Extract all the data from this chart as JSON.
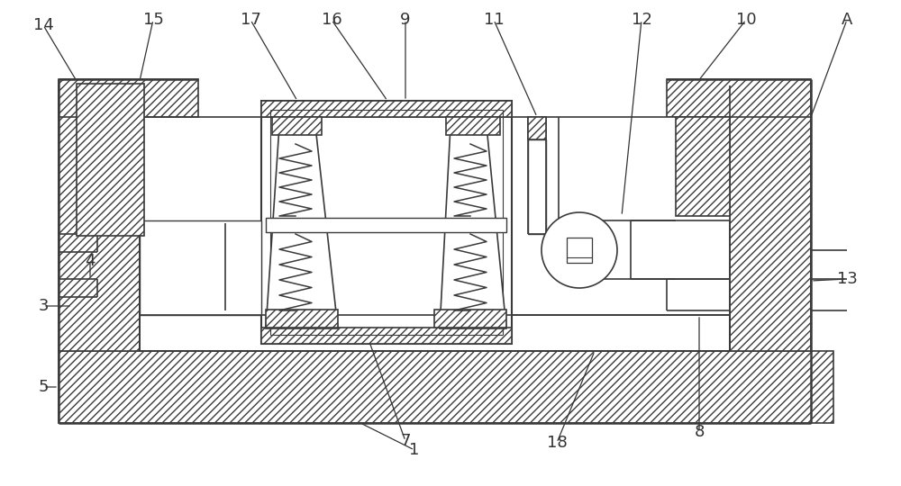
{
  "bg_color": "#ffffff",
  "line_color": "#3a3a3a",
  "fig_width": 10.0,
  "fig_height": 5.4,
  "ann_color": "#333333",
  "ann_lw": 1.0,
  "fs": 13
}
